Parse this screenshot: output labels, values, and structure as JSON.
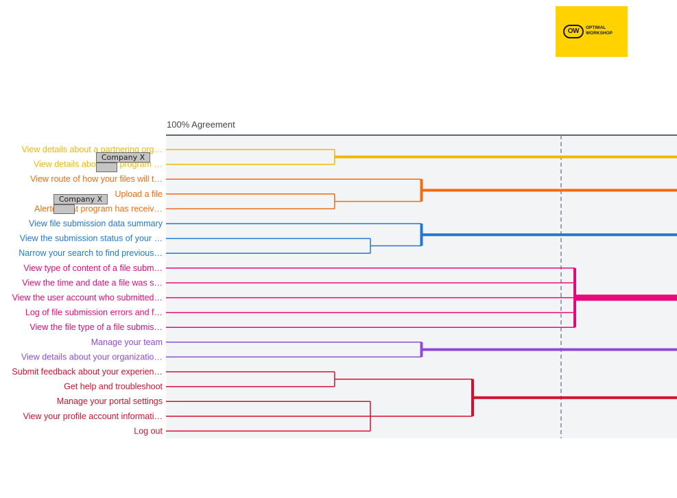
{
  "logo": {
    "badge": "OW",
    "line1": "OPTIMAL",
    "line2": "WORKSHOP",
    "color": "#ffd200"
  },
  "header": {
    "agreement_label": "100% Agreement"
  },
  "redactions": [
    {
      "label": "Company X"
    },
    {
      "label": "Company X"
    }
  ],
  "chart_data": {
    "type": "dendrogram",
    "threshold_line": "dashed",
    "cards": [
      {
        "label": "View details about a partnering org…",
        "color": "#f2b705"
      },
      {
        "label": "View details about the             program …",
        "color": "#f2b705"
      },
      {
        "label": "View route of how your files will t…",
        "color": "#f26b0f"
      },
      {
        "label": "Upload a file",
        "color": "#f26b0f"
      },
      {
        "label": "Alerted that             program has receiv…",
        "color": "#f26b0f"
      },
      {
        "label": "View file submission data summary",
        "color": "#1f78d1"
      },
      {
        "label": "View the submission status of your …",
        "color": "#1f78d1"
      },
      {
        "label": "Narrow your search to find previous…",
        "color": "#1f78d1"
      },
      {
        "label": "View type of content of a file subm…",
        "color": "#e6097a"
      },
      {
        "label": "View the time and date a file was s…",
        "color": "#e6097a"
      },
      {
        "label": "View the user account who submitted…",
        "color": "#e6097a"
      },
      {
        "label": "Log of file submission errors and f…",
        "color": "#e6097a"
      },
      {
        "label": "View the file type of a file submis…",
        "color": "#e6097a"
      },
      {
        "label": "Manage your team",
        "color": "#8e4bd6"
      },
      {
        "label": "View details about your organizatio…",
        "color": "#8e4bd6"
      },
      {
        "label": "Submit feedback about your experien…",
        "color": "#d4102e"
      },
      {
        "label": "Get help and troubleshoot",
        "color": "#d4102e"
      },
      {
        "label": "Manage your portal settings",
        "color": "#d4102e"
      },
      {
        "label": "View your profile account informati…",
        "color": "#d4102e"
      },
      {
        "label": "Log out",
        "color": "#d4102e"
      }
    ],
    "merges": [
      {
        "group": 0,
        "a": 0,
        "b": 1,
        "agreement": 0.67
      },
      {
        "group": 1,
        "a": 3,
        "b": 4,
        "agreement": 0.67
      },
      {
        "group": 1,
        "a": 2,
        "b": [
          3,
          4
        ],
        "agreement": 0.5
      },
      {
        "group": 2,
        "a": 6,
        "b": 7,
        "agreement": 0.6
      },
      {
        "group": 2,
        "a": 5,
        "b": [
          6,
          7
        ],
        "agreement": 0.5
      },
      {
        "group": 3,
        "a": 8,
        "b": 12,
        "agreement": 0.2
      },
      {
        "group": 4,
        "a": 13,
        "b": 14,
        "agreement": 0.5
      },
      {
        "group": 5,
        "a": 15,
        "b": 16,
        "agreement": 0.67
      },
      {
        "group": 5,
        "a": 17,
        "b": 19,
        "agreement": 0.6
      },
      {
        "group": 5,
        "a": [
          15,
          16
        ],
        "b": [
          17,
          19
        ],
        "agreement": 0.4
      }
    ]
  }
}
